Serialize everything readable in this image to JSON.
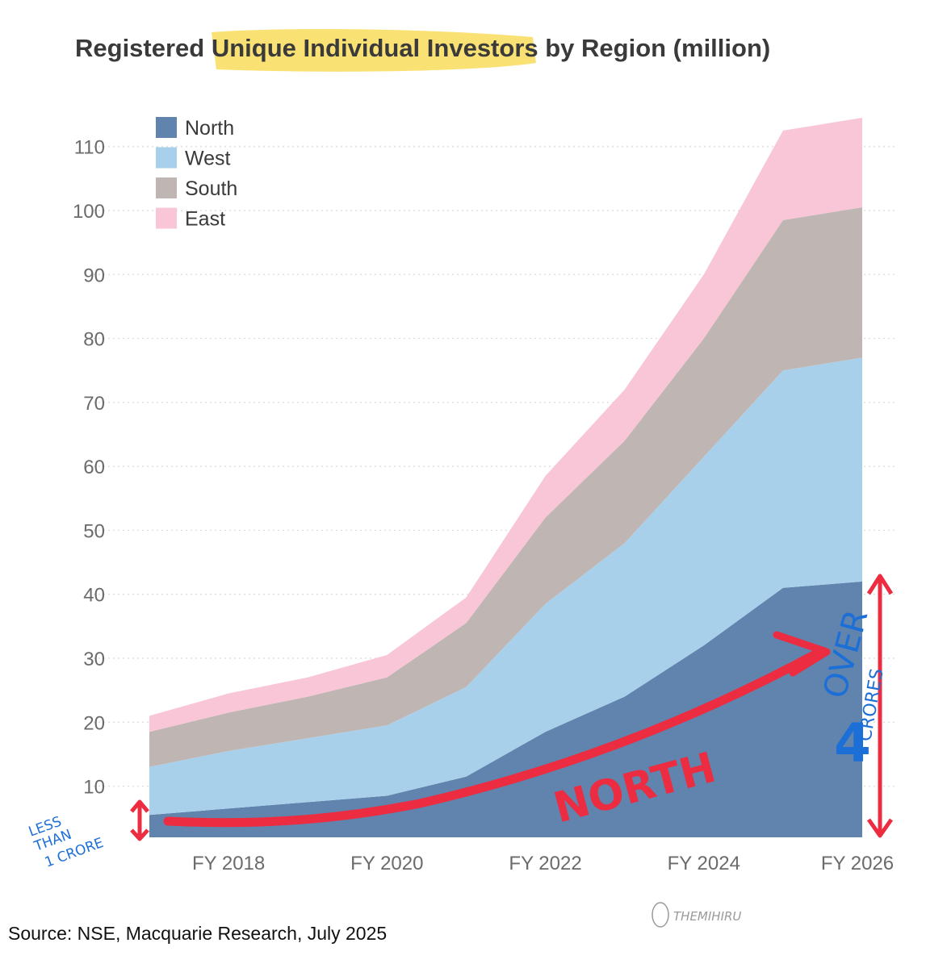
{
  "chart_data": {
    "type": "area",
    "stacked": true,
    "title": "Registered Unique Individual Investors by Region (million)",
    "title_highlight": "Unique Individual Investors",
    "x": [
      "FY 2017",
      "FY 2018",
      "FY 2019",
      "FY 2020",
      "FY 2021",
      "FY 2022",
      "FY 2023",
      "FY 2024",
      "FY 2025",
      "FY 2026"
    ],
    "x_tick_labels": [
      "FY 2018",
      "FY 2020",
      "FY 2022",
      "FY 2024",
      "FY 2026"
    ],
    "y_ticks": [
      10,
      20,
      30,
      40,
      50,
      60,
      70,
      80,
      90,
      100,
      110
    ],
    "ylim": [
      2,
      114
    ],
    "series": [
      {
        "name": "North",
        "color": "#6084ae",
        "values": [
          5.5,
          6.5,
          7.5,
          8.5,
          11.5,
          18.5,
          24,
          32,
          41,
          42
        ]
      },
      {
        "name": "West",
        "color": "#a9d0ea",
        "values": [
          7.5,
          9,
          10,
          11,
          14,
          20,
          24,
          29.5,
          34,
          35
        ]
      },
      {
        "name": "South",
        "color": "#bfb6b4",
        "values": [
          5.5,
          6,
          6.5,
          7.5,
          10,
          13.5,
          16,
          18.5,
          23.5,
          23.5
        ]
      },
      {
        "name": "East",
        "color": "#f8c6d6",
        "values": [
          2.5,
          3,
          3,
          3.5,
          4,
          6.5,
          8,
          10,
          14,
          14
        ]
      }
    ],
    "legend": {
      "placement": "top-left"
    },
    "grid": "horizontal-dotted",
    "source": "Source: NSE, Macquarie Research, July 2025"
  },
  "annotations": {
    "left_note": [
      "LESS",
      "THAN",
      "1 CRORE"
    ],
    "right_note": [
      "OVER",
      "4",
      "CRORES"
    ],
    "arrow_label": "NORTH",
    "watermark": "THEMIHIRU",
    "highlight_color": "#f9dc5c",
    "red_color": "#ec2c40",
    "blue_color": "#1d6fd8"
  }
}
